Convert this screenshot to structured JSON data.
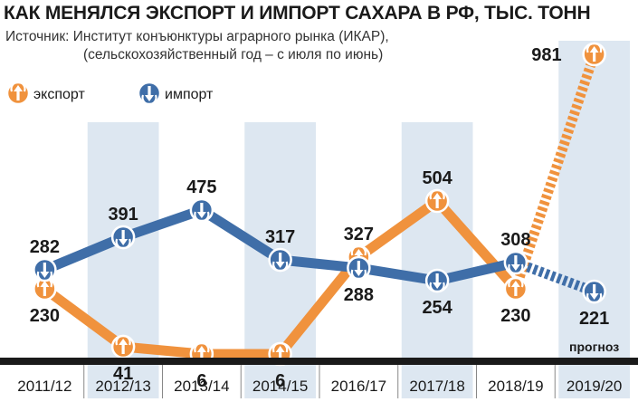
{
  "chart_data": {
    "type": "line",
    "title": "КАК МЕНЯЛСЯ ЭКСПОРТ И ИМПОРТ САХАРА В РФ, ТЫС. ТОНН",
    "subtitle_line1": "Источник: Институт конъюнктуры аграрного рынка (ИКАР),",
    "subtitle_line2": "(сельскохозяйственный год – с июля по июнь)",
    "categories": [
      "2011/12",
      "2012/13",
      "2013/14",
      "2014/15",
      "2016/17",
      "2017/18",
      "2018/19",
      "2019/20"
    ],
    "shaded_categories": [
      "2012/13",
      "2014/15",
      "2017/18",
      "2019/20"
    ],
    "forecast_from_category": "2018/19",
    "forecast_note": "прогноз",
    "series": [
      {
        "name": "экспорт",
        "values": [
          230,
          41,
          6,
          6,
          327,
          504,
          230,
          981
        ],
        "color": "#f0923d",
        "icon": "arrow-up-icon"
      },
      {
        "name": "импорт",
        "values": [
          282,
          391,
          475,
          317,
          288,
          254,
          308,
          221
        ],
        "color": "#3f6ea8",
        "icon": "arrow-down-icon"
      }
    ],
    "ylim": [
      0,
      1000
    ],
    "grid": false,
    "legend_position": "top-left"
  }
}
